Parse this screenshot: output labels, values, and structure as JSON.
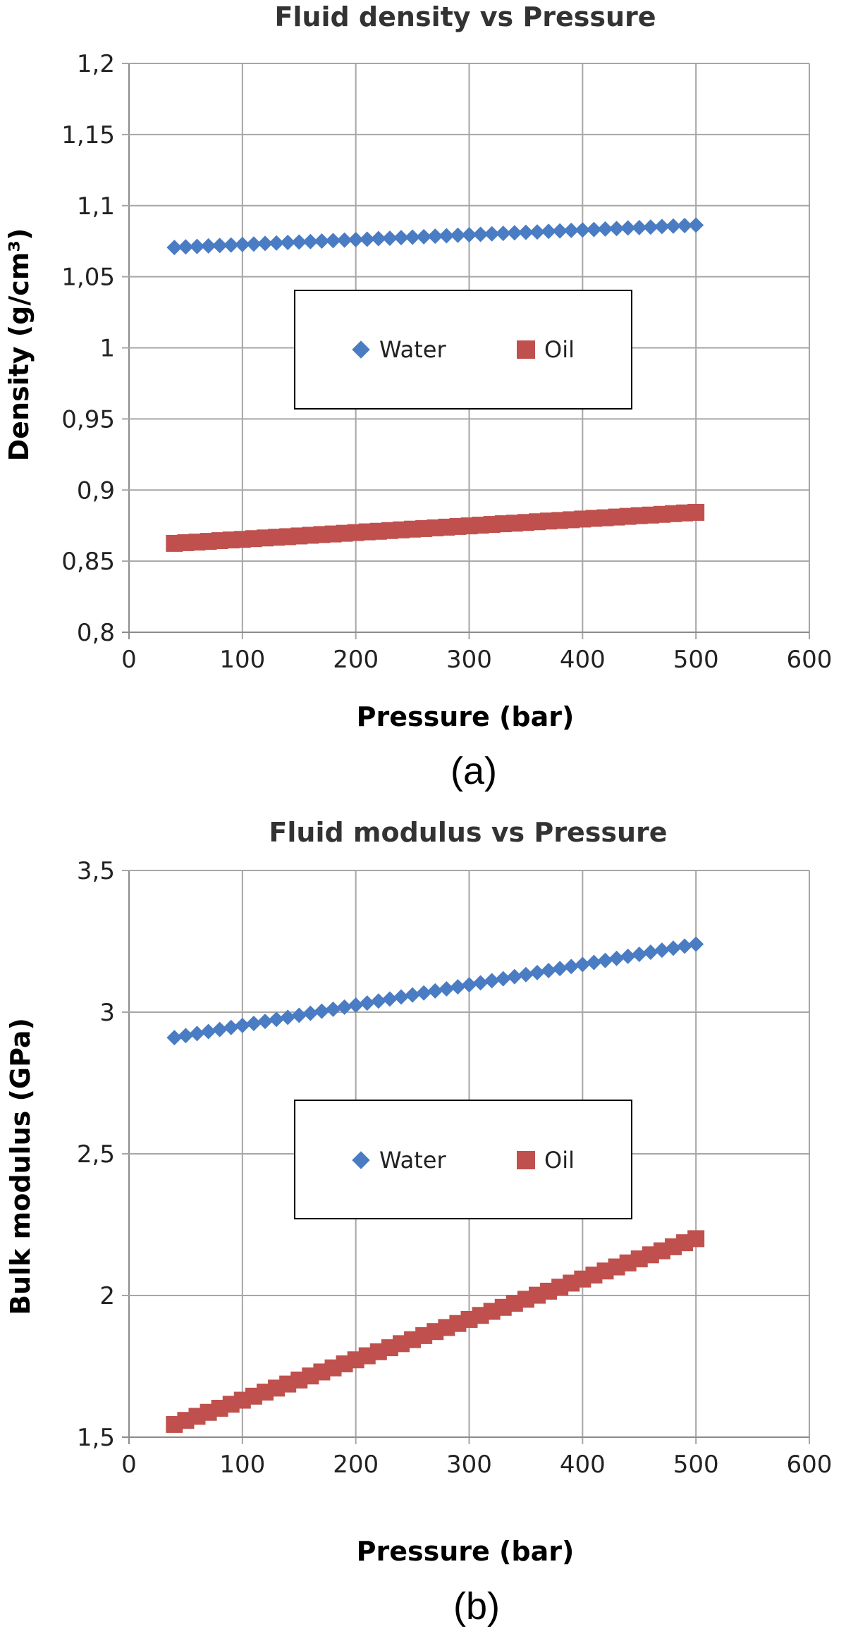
{
  "chart_data": [
    {
      "type": "scatter",
      "title": "Fluid density vs Pressure",
      "xlabel": "Pressure (bar)",
      "ylabel": "Density (g/cm³)",
      "panel_label": "(a)",
      "xlim": [
        0,
        600
      ],
      "ylim": [
        0.8,
        1.2
      ],
      "x_ticks": [
        0,
        100,
        200,
        300,
        400,
        500,
        600
      ],
      "x_tick_labels": [
        "0",
        "100",
        "200",
        "300",
        "400",
        "500",
        "600"
      ],
      "y_ticks": [
        0.8,
        0.85,
        0.9,
        0.95,
        1.0,
        1.05,
        1.1,
        1.15,
        1.2
      ],
      "y_tick_labels": [
        "0,8",
        "0,85",
        "0,9",
        "0,95",
        "1",
        "1,05",
        "1,1",
        "1,15",
        "1,2"
      ],
      "grid": true,
      "legend_position": "center",
      "series": [
        {
          "name": "Water",
          "marker": "diamond",
          "color": "#4a7cc4",
          "x": [
            40,
            50,
            60,
            70,
            80,
            90,
            100,
            110,
            120,
            130,
            140,
            150,
            160,
            170,
            180,
            190,
            200,
            210,
            220,
            230,
            240,
            250,
            260,
            270,
            280,
            290,
            300,
            310,
            320,
            330,
            340,
            350,
            360,
            370,
            380,
            390,
            400,
            410,
            420,
            430,
            440,
            450,
            460,
            470,
            480,
            490,
            500
          ],
          "y": [
            1.0706,
            1.071,
            1.0713,
            1.0717,
            1.072,
            1.0723,
            1.0727,
            1.073,
            1.0734,
            1.0737,
            1.0741,
            1.0744,
            1.0747,
            1.0751,
            1.0754,
            1.0758,
            1.0761,
            1.0764,
            1.0768,
            1.0771,
            1.0775,
            1.0778,
            1.0781,
            1.0785,
            1.0788,
            1.0792,
            1.0795,
            1.0798,
            1.0802,
            1.0805,
            1.0809,
            1.0812,
            1.0815,
            1.0819,
            1.0822,
            1.0826,
            1.0829,
            1.0832,
            1.0836,
            1.0839,
            1.0843,
            1.0846,
            1.0849,
            1.0853,
            1.0856,
            1.086,
            1.0863
          ]
        },
        {
          "name": "Oil",
          "marker": "square",
          "color": "#c0504d",
          "x": [
            40,
            50,
            60,
            70,
            80,
            90,
            100,
            110,
            120,
            130,
            140,
            150,
            160,
            170,
            180,
            190,
            200,
            210,
            220,
            230,
            240,
            250,
            260,
            270,
            280,
            290,
            300,
            310,
            320,
            330,
            340,
            350,
            360,
            370,
            380,
            390,
            400,
            410,
            420,
            430,
            440,
            450,
            460,
            470,
            480,
            490,
            500
          ],
          "y": [
            0.8625,
            0.863,
            0.8634,
            0.8639,
            0.8644,
            0.8649,
            0.8653,
            0.8658,
            0.8663,
            0.8668,
            0.8672,
            0.8677,
            0.8682,
            0.8687,
            0.8691,
            0.8696,
            0.8701,
            0.8706,
            0.871,
            0.8715,
            0.872,
            0.8725,
            0.8729,
            0.8734,
            0.8739,
            0.8744,
            0.8748,
            0.8753,
            0.8758,
            0.8763,
            0.8767,
            0.8772,
            0.8777,
            0.8782,
            0.8786,
            0.8791,
            0.8796,
            0.8801,
            0.8805,
            0.881,
            0.8815,
            0.882,
            0.8824,
            0.8829,
            0.8834,
            0.8839,
            0.8843
          ]
        }
      ]
    },
    {
      "type": "scatter",
      "title": "Fluid modulus vs Pressure",
      "xlabel": "Pressure (bar)",
      "ylabel": "Bulk modulus (GPa)",
      "panel_label": "(b)",
      "xlim": [
        0,
        600
      ],
      "ylim": [
        1.5,
        3.5
      ],
      "x_ticks": [
        0,
        100,
        200,
        300,
        400,
        500,
        600
      ],
      "x_tick_labels": [
        "0",
        "100",
        "200",
        "300",
        "400",
        "500",
        "600"
      ],
      "y_ticks": [
        1.5,
        2.0,
        2.5,
        3.0,
        3.5
      ],
      "y_tick_labels": [
        "1,5",
        "2",
        "2,5",
        "3",
        "3,5"
      ],
      "grid": true,
      "legend_position": "center",
      "series": [
        {
          "name": "Water",
          "marker": "diamond",
          "color": "#4a7cc4",
          "x": [
            40,
            50,
            60,
            70,
            80,
            90,
            100,
            110,
            120,
            130,
            140,
            150,
            160,
            170,
            180,
            190,
            200,
            210,
            220,
            230,
            240,
            250,
            260,
            270,
            280,
            290,
            300,
            310,
            320,
            330,
            340,
            350,
            360,
            370,
            380,
            390,
            400,
            410,
            420,
            430,
            440,
            450,
            460,
            470,
            480,
            490,
            500
          ],
          "y": [
            2.91,
            2.9172,
            2.9243,
            2.9315,
            2.9387,
            2.9459,
            2.953,
            2.9602,
            2.9674,
            2.9746,
            2.9817,
            2.9889,
            2.9961,
            3.0033,
            3.0104,
            3.0176,
            3.0248,
            3.032,
            3.0391,
            3.0463,
            3.0535,
            3.0607,
            3.0678,
            3.075,
            3.0822,
            3.0893,
            3.0965,
            3.1037,
            3.1109,
            3.118,
            3.1252,
            3.1324,
            3.1396,
            3.1467,
            3.1539,
            3.1611,
            3.1683,
            3.1754,
            3.1826,
            3.1898,
            3.197,
            3.2041,
            3.2113,
            3.2185,
            3.2257,
            3.2328,
            3.24
          ]
        },
        {
          "name": "Oil",
          "marker": "square",
          "color": "#c0504d",
          "x": [
            40,
            50,
            60,
            70,
            80,
            90,
            100,
            110,
            120,
            130,
            140,
            150,
            160,
            170,
            180,
            190,
            200,
            210,
            220,
            230,
            240,
            250,
            260,
            270,
            280,
            290,
            300,
            310,
            320,
            330,
            340,
            350,
            360,
            370,
            380,
            390,
            400,
            410,
            420,
            430,
            440,
            450,
            460,
            470,
            480,
            490,
            500
          ],
          "y": [
            1.545,
            1.5592,
            1.5735,
            1.5877,
            1.602,
            1.6162,
            1.6305,
            1.6447,
            1.659,
            1.6732,
            1.6875,
            1.7017,
            1.716,
            1.7302,
            1.7445,
            1.7587,
            1.773,
            1.7872,
            1.8015,
            1.8157,
            1.83,
            1.8442,
            1.8585,
            1.8727,
            1.887,
            1.9012,
            1.9155,
            1.9297,
            1.944,
            1.9582,
            1.9725,
            1.9867,
            2.001,
            2.0152,
            2.0295,
            2.0437,
            2.058,
            2.0722,
            2.0865,
            2.1007,
            2.115,
            2.1292,
            2.1435,
            2.1577,
            2.172,
            2.1862,
            2.2005
          ]
        }
      ]
    }
  ]
}
